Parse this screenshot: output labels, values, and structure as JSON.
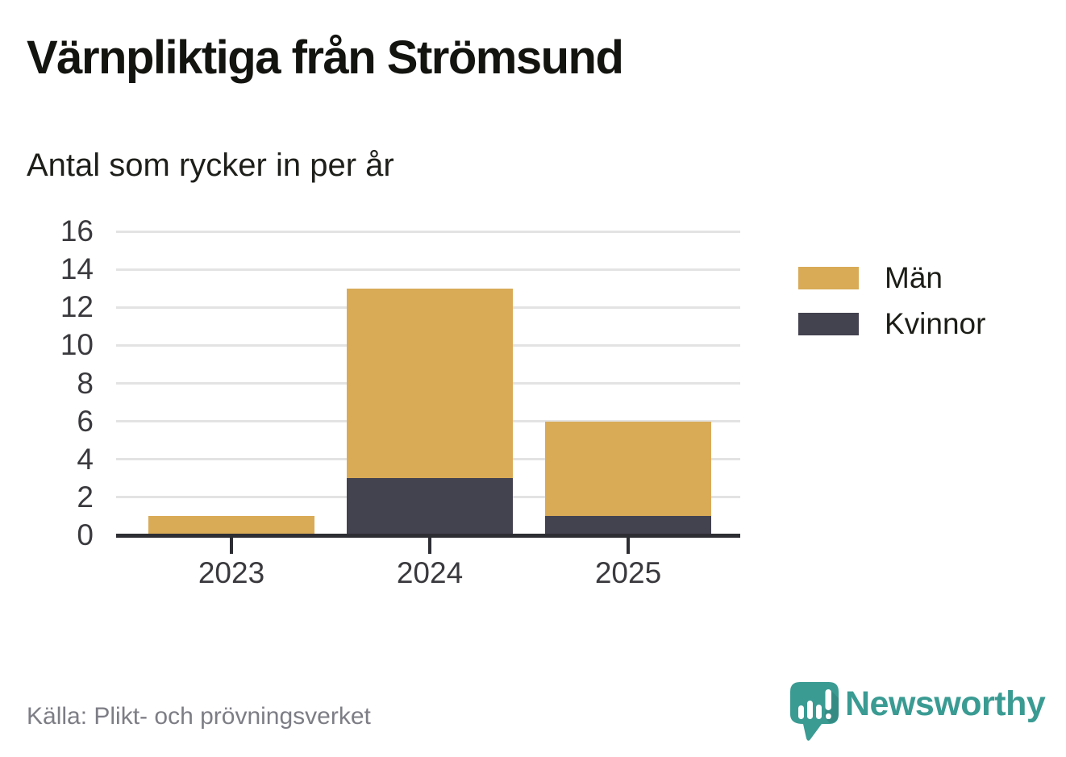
{
  "header": {
    "title": "Värnpliktiga från Strömsund",
    "subtitle": "Antal som rycker in per år"
  },
  "footer": {
    "source": "Källa: Plikt- och prövningsverket",
    "brand": "Newsworthy"
  },
  "colors": {
    "men": "#d9ab57",
    "women": "#43424f",
    "axis": "#2d2d34",
    "grid": "#e3e3e3",
    "tick_text": "#3a3a3e",
    "title_text": "#131310",
    "source_text": "#7d7d86",
    "brand_teal": "#3a9b93",
    "background": "#ffffff"
  },
  "chart_data": {
    "type": "bar",
    "stacked": true,
    "title": "Värnpliktiga från Strömsund",
    "subtitle": "Antal som rycker in per år",
    "categories": [
      "2023",
      "2024",
      "2025"
    ],
    "series": [
      {
        "name": "Män",
        "color": "#d9ab57",
        "values": [
          1,
          10,
          5
        ]
      },
      {
        "name": "Kvinnor",
        "color": "#43424f",
        "values": [
          0,
          3,
          1
        ]
      }
    ],
    "stack_order_bottom_to_top": [
      "Kvinnor",
      "Män"
    ],
    "totals": [
      1,
      13,
      6
    ],
    "xlabel": "",
    "ylabel": "",
    "ylim": [
      0,
      16
    ],
    "yticks": [
      0,
      2,
      4,
      6,
      8,
      10,
      12,
      14,
      16
    ],
    "grid": true,
    "legend_position": "right"
  }
}
